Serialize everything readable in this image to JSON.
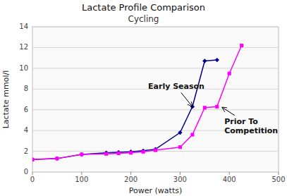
{
  "chart_data": {
    "type": "line",
    "title": "Lactate Profile Comparison",
    "subtitle": "Cycling",
    "x_label": "Power (watts)",
    "y_label": "Lactate mmol/l",
    "xlim": [
      0,
      500
    ],
    "ylim": [
      0,
      14
    ],
    "xticks": [
      0,
      100,
      200,
      300,
      400,
      500
    ],
    "yticks": [
      0,
      2,
      4,
      6,
      8,
      10,
      12,
      14
    ],
    "grid": true,
    "series": [
      {
        "name": "Early Season",
        "color": "#00008B",
        "marker": "diamond",
        "x": [
          0,
          50,
          100,
          150,
          175,
          200,
          225,
          250,
          300,
          325,
          350,
          375
        ],
        "values": [
          1.2,
          1.3,
          1.7,
          1.85,
          1.9,
          1.95,
          2.05,
          2.2,
          3.8,
          6.3,
          10.7,
          10.8
        ]
      },
      {
        "name": "Prior To\nCompetition",
        "color": "#FF00FF",
        "marker": "square",
        "x": [
          0,
          50,
          100,
          150,
          175,
          200,
          225,
          250,
          300,
          325,
          350,
          375,
          400,
          425
        ],
        "values": [
          1.2,
          1.3,
          1.7,
          1.75,
          1.8,
          1.85,
          1.95,
          2.1,
          2.4,
          3.6,
          6.2,
          6.3,
          9.5,
          12.2
        ]
      }
    ],
    "annotations": [
      {
        "text": "Early Season",
        "x": 235,
        "y": 8.2,
        "target_x": 325,
        "target_y": 6.3
      },
      {
        "text": "Prior To\nCompetition",
        "x": 390,
        "y": 4.4,
        "target_x": 385,
        "target_y": 6.25
      }
    ]
  }
}
